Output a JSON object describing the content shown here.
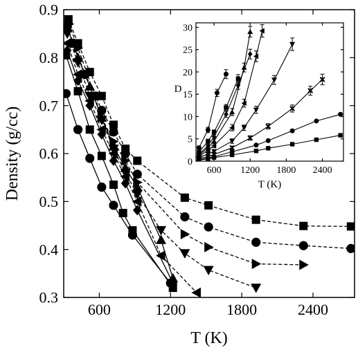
{
  "chart_data": [
    {
      "type": "line",
      "title": "",
      "xlabel": "T (K)",
      "ylabel": "Density (g/cc)",
      "xlim": [
        300,
        2750
      ],
      "ylim": [
        0.3,
        0.9
      ],
      "xticks": [
        600,
        1200,
        1800,
        2400
      ],
      "yticks": [
        0.3,
        0.4,
        0.5,
        0.6,
        0.7,
        0.8,
        0.9
      ],
      "xtick_labels": [
        "600",
        "1200",
        "1800",
        "2400"
      ],
      "ytick_labels": [
        "0.3",
        "0.4",
        "0.5",
        "0.6",
        "0.7",
        "0.8",
        "0.9"
      ],
      "grid": false,
      "legend": "none",
      "series": [
        {
          "marker": "square",
          "linestyle": "dashed",
          "x": [
            340,
            420,
            520,
            620,
            720,
            820,
            920,
            1320,
            1520,
            1920,
            2320,
            2720
          ],
          "y": [
            0.88,
            0.83,
            0.77,
            0.72,
            0.66,
            0.61,
            0.585,
            0.508,
            0.492,
            0.462,
            0.449,
            0.448
          ]
        },
        {
          "marker": "circle",
          "linestyle": "dashed",
          "x": [
            330,
            380,
            480,
            570,
            620,
            720,
            820,
            920,
            1320,
            1520,
            1920,
            2320,
            2720
          ],
          "y": [
            0.865,
            0.83,
            0.765,
            0.72,
            0.69,
            0.645,
            0.6,
            0.557,
            0.468,
            0.447,
            0.415,
            0.408,
            0.402
          ]
        },
        {
          "marker": "triangle-right",
          "linestyle": "dashed",
          "x": [
            345,
            420,
            500,
            620,
            720,
            820,
            920,
            1320,
            1520,
            1920,
            2320
          ],
          "y": [
            0.87,
            0.82,
            0.765,
            0.675,
            0.625,
            0.585,
            0.54,
            0.432,
            0.405,
            0.37,
            0.368
          ]
        },
        {
          "marker": "triangle-down",
          "linestyle": "dashed",
          "x": [
            330,
            420,
            520,
            620,
            720,
            820,
            920,
            1120,
            1320,
            1520,
            1920
          ],
          "y": [
            0.85,
            0.79,
            0.72,
            0.67,
            0.61,
            0.56,
            0.515,
            0.44,
            0.392,
            0.357,
            0.32
          ]
        },
        {
          "marker": "triangle-left",
          "linestyle": "dashed",
          "x": [
            330,
            420,
            520,
            620,
            720,
            820,
            920,
            1120,
            1420
          ],
          "y": [
            0.83,
            0.765,
            0.71,
            0.65,
            0.6,
            0.552,
            0.5,
            0.387,
            0.31
          ]
        },
        {
          "marker": "diamond",
          "linestyle": "solid",
          "x": [
            330,
            420,
            520,
            620,
            720,
            820,
            920,
            1220
          ],
          "y": [
            0.815,
            0.752,
            0.7,
            0.64,
            0.585,
            0.538,
            0.482,
            0.33
          ]
        },
        {
          "marker": "square",
          "linestyle": "solid",
          "x": [
            320,
            420,
            520,
            620,
            720,
            800,
            880,
            1220
          ],
          "y": [
            0.805,
            0.73,
            0.65,
            0.595,
            0.535,
            0.476,
            0.44,
            0.32
          ]
        },
        {
          "marker": "circle",
          "linestyle": "solid",
          "x": [
            320,
            420,
            520,
            620,
            720,
            880,
            1200
          ],
          "y": [
            0.725,
            0.65,
            0.59,
            0.53,
            0.492,
            0.43,
            0.33
          ]
        },
        {
          "marker": "triangle-up",
          "linestyle": "solid",
          "x": [
            320,
            420,
            520,
            620,
            720,
            820,
            920,
            1120,
            1220
          ],
          "y": [
            0.87,
            0.8,
            0.74,
            0.675,
            0.615,
            0.57,
            0.53,
            0.42,
            0.34
          ]
        }
      ]
    },
    {
      "type": "line",
      "title": "",
      "xlabel": "T (K)",
      "ylabel": "D",
      "xlim": [
        300,
        2750
      ],
      "ylim": [
        0,
        31
      ],
      "xticks": [
        600,
        1200,
        1800,
        2400
      ],
      "yticks": [
        0,
        5,
        10,
        15,
        20,
        25,
        30
      ],
      "xtick_labels": [
        "600",
        "1200",
        "1800",
        "2400"
      ],
      "ytick_labels": [
        "0",
        "5",
        "10",
        "15",
        "20",
        "25",
        "30"
      ],
      "grid": false,
      "legend": "none",
      "error_bars": true,
      "series": [
        {
          "marker": "square",
          "x": [
            350,
            500,
            600,
            900,
            1300,
            1500,
            1900,
            2300,
            2700
          ],
          "y": [
            0.3,
            0.5,
            0.8,
            1.4,
            2.3,
            2.9,
            3.8,
            4.8,
            5.8
          ]
        },
        {
          "marker": "circle",
          "x": [
            350,
            500,
            600,
            900,
            1300,
            1500,
            1900,
            2300,
            2700
          ],
          "y": [
            0.4,
            0.7,
            1.0,
            2.1,
            3.6,
            4.6,
            6.8,
            9.0,
            10.5
          ]
        },
        {
          "marker": "x",
          "x": [
            350,
            500,
            600,
            900,
            1200,
            1500,
            1900,
            2200,
            2400
          ],
          "y": [
            0.6,
            1.0,
            1.5,
            3.0,
            5.2,
            7.8,
            11.8,
            15.8,
            18.3
          ],
          "err": [
            0.2,
            0.2,
            0.3,
            0.4,
            0.5,
            0.6,
            0.8,
            1.0,
            1.2
          ]
        },
        {
          "marker": "triangle-down",
          "x": [
            350,
            500,
            600,
            900,
            1100,
            1300,
            1600,
            1900
          ],
          "y": [
            0.8,
            1.6,
            2.2,
            4.5,
            7.5,
            11.5,
            18.2,
            26.2
          ],
          "err": [
            0.2,
            0.3,
            0.3,
            0.5,
            0.6,
            0.8,
            1.0,
            1.4
          ]
        },
        {
          "marker": "triangle-left",
          "x": [
            350,
            500,
            600,
            900,
            1100,
            1300,
            1400
          ],
          "y": [
            1.0,
            2.5,
            3.5,
            7.5,
            13.0,
            23.5,
            29.2
          ],
          "err": [
            0.3,
            0.4,
            0.5,
            0.7,
            0.9,
            1.2,
            1.4
          ]
        },
        {
          "marker": "triangle-up",
          "x": [
            350,
            500,
            600,
            900,
            1100,
            1200
          ],
          "y": [
            1.3,
            3.0,
            4.5,
            11.0,
            21.0,
            29.0
          ],
          "err": [
            0.3,
            0.4,
            0.5,
            0.8,
            1.0,
            1.2
          ]
        },
        {
          "marker": "diamond",
          "x": [
            350,
            500,
            600,
            800,
            1000,
            1200
          ],
          "y": [
            1.5,
            3.5,
            5.5,
            10.5,
            17.0,
            24.0
          ],
          "err": [
            0.3,
            0.4,
            0.5,
            0.7,
            0.9,
            1.1
          ]
        },
        {
          "marker": "square",
          "x": [
            350,
            500,
            600,
            800,
            1000
          ],
          "y": [
            2.0,
            4.5,
            6.5,
            12.0,
            18.5
          ],
          "err": [
            0.3,
            0.4,
            0.5,
            0.7,
            0.9
          ]
        },
        {
          "marker": "circle",
          "x": [
            350,
            500,
            650,
            800
          ],
          "y": [
            3.0,
            7.0,
            15.3,
            19.5
          ],
          "err": [
            0.4,
            0.6,
            0.8,
            1.0
          ]
        }
      ]
    }
  ]
}
